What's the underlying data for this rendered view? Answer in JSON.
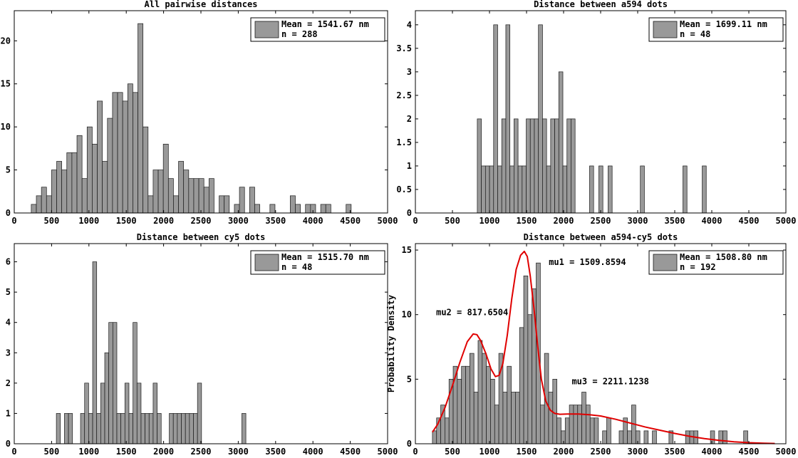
{
  "chart_data": [
    {
      "type": "bar",
      "title": "All pairwise distances",
      "xlim": [
        0,
        5000
      ],
      "ylim": [
        0,
        23.5
      ],
      "xticks": [
        0,
        500,
        1000,
        1500,
        2000,
        2500,
        3000,
        3500,
        4000,
        4500,
        5000
      ],
      "yticks": [
        0,
        5,
        10,
        15,
        20
      ],
      "bin_width": 68,
      "bar_color": "#999999",
      "x": [
        262,
        330,
        398,
        466,
        534,
        602,
        670,
        738,
        806,
        874,
        942,
        1010,
        1078,
        1146,
        1214,
        1282,
        1350,
        1418,
        1486,
        1554,
        1622,
        1690,
        1758,
        1826,
        1894,
        1962,
        2030,
        2098,
        2166,
        2234,
        2302,
        2370,
        2438,
        2506,
        2574,
        2642,
        2710,
        2778,
        2846,
        2914,
        2982,
        3050,
        3118,
        3186,
        3254,
        3322,
        3390,
        3458,
        3526,
        3594,
        3662,
        3730,
        3798,
        3866,
        3934,
        4002,
        4070,
        4138,
        4206,
        4274,
        4342,
        4410,
        4478
      ],
      "values": [
        1,
        2,
        3,
        2,
        5,
        6,
        5,
        7,
        7,
        9,
        4,
        10,
        8,
        13,
        6,
        11,
        14,
        14,
        13,
        15,
        14,
        22,
        10,
        2,
        5,
        5,
        8,
        4,
        2,
        6,
        5,
        4,
        4,
        4,
        3,
        4,
        0,
        2,
        2,
        0,
        1,
        3,
        0,
        3,
        1,
        0,
        0,
        1,
        0,
        0,
        0,
        2,
        1,
        0,
        1,
        1,
        0,
        1,
        1,
        0,
        0,
        0,
        1
      ],
      "legend": {
        "label": "Mean = 1541.67 nm",
        "n": "n = 288",
        "position": "top-right"
      }
    },
    {
      "type": "bar",
      "title": "Distance between a594 dots",
      "xlim": [
        0,
        5000
      ],
      "ylim": [
        0,
        4.3
      ],
      "xticks": [
        0,
        500,
        1000,
        1500,
        2000,
        2500,
        3000,
        3500,
        4000,
        4500,
        5000
      ],
      "yticks": [
        0,
        0.5,
        1,
        1.5,
        2,
        2.5,
        3,
        3.5,
        4
      ],
      "ytick_labels": [
        "0",
        "0.5",
        "1",
        "1.5",
        "2",
        "2.5",
        "3",
        "3.5",
        "4"
      ],
      "bin_width": 55,
      "bar_color": "#999999",
      "x": [
        863,
        918,
        973,
        1028,
        1083,
        1138,
        1193,
        1248,
        1303,
        1358,
        1413,
        1468,
        1523,
        1578,
        1633,
        1688,
        1743,
        1798,
        1853,
        1908,
        1963,
        2018,
        2073,
        2128,
        2378,
        2503,
        2628,
        3063,
        3638,
        3898
      ],
      "values": [
        2,
        1,
        1,
        1,
        4,
        1,
        2,
        4,
        1,
        2,
        1,
        1,
        2,
        2,
        2,
        4,
        2,
        1,
        2,
        2,
        3,
        1,
        2,
        2,
        1,
        1,
        1,
        1,
        1,
        1
      ],
      "legend": {
        "label": "Mean = 1699.11 nm",
        "n": "n = 48",
        "position": "top-right"
      }
    },
    {
      "type": "bar",
      "title": "Distance between cy5 dots",
      "xlim": [
        0,
        5000
      ],
      "ylim": [
        0,
        6.6
      ],
      "xticks": [
        0,
        500,
        1000,
        1500,
        2000,
        2500,
        3000,
        3500,
        4000,
        4500,
        5000
      ],
      "yticks": [
        0,
        1,
        2,
        3,
        4,
        5,
        6
      ],
      "bin_width": 54,
      "bar_color": "#999999",
      "x": [
        591,
        699,
        753,
        915,
        969,
        1023,
        1077,
        1131,
        1185,
        1239,
        1293,
        1347,
        1401,
        1455,
        1509,
        1563,
        1617,
        1671,
        1725,
        1779,
        1833,
        1887,
        1941,
        2103,
        2157,
        2211,
        2265,
        2319,
        2373,
        2427,
        2481,
        3075
      ],
      "values": [
        1,
        1,
        1,
        1,
        2,
        1,
        6,
        1,
        2,
        3,
        4,
        4,
        1,
        1,
        2,
        1,
        4,
        2,
        1,
        1,
        1,
        2,
        1,
        1,
        1,
        1,
        1,
        1,
        1,
        1,
        2,
        1
      ],
      "legend": {
        "label": "Mean = 1515.70 nm",
        "n": "n = 48",
        "position": "top-right"
      }
    },
    {
      "type": "bar",
      "title": "Distance between a594-cy5 dots",
      "ylabel": "Probability Density",
      "xlim": [
        0,
        5000
      ],
      "ylim": [
        0,
        15.5
      ],
      "xticks": [
        0,
        500,
        1000,
        1500,
        2000,
        2500,
        3000,
        3500,
        4000,
        4500,
        5000
      ],
      "yticks": [
        0,
        5,
        10,
        15
      ],
      "bin_width": 56,
      "bar_color": "#999999",
      "x": [
        258,
        314,
        370,
        426,
        482,
        538,
        594,
        650,
        706,
        762,
        818,
        874,
        930,
        986,
        1042,
        1098,
        1154,
        1210,
        1266,
        1322,
        1378,
        1434,
        1490,
        1546,
        1602,
        1658,
        1714,
        1770,
        1826,
        1882,
        1938,
        1994,
        2050,
        2106,
        2162,
        2218,
        2274,
        2330,
        2386,
        2442,
        2498,
        2554,
        2610,
        2666,
        2722,
        2778,
        2834,
        2890,
        2946,
        3002,
        3058,
        3114,
        3170,
        3226,
        3282,
        3338,
        3394,
        3450,
        3506,
        3562,
        3618,
        3674,
        3730,
        3786,
        3842,
        3898,
        3954,
        4010,
        4066,
        4122,
        4178,
        4234,
        4290,
        4346,
        4402,
        4458
      ],
      "values": [
        1,
        2,
        3,
        2,
        5,
        6,
        5,
        6,
        6,
        7,
        4,
        8,
        7,
        6,
        5,
        3,
        7,
        4,
        6,
        4,
        4,
        9,
        13,
        10,
        12,
        14,
        3,
        7,
        4,
        5,
        2,
        1,
        2,
        3,
        3,
        3,
        4,
        3,
        2,
        2,
        0,
        1,
        2,
        0,
        0,
        1,
        2,
        1,
        3,
        1,
        0,
        1,
        0,
        1,
        0,
        0,
        0,
        1,
        0,
        0,
        0,
        1,
        1,
        1,
        0,
        0,
        0,
        1,
        0,
        1,
        1,
        0,
        0,
        0,
        0,
        1
      ],
      "fit_curve": {
        "color": "#e00000",
        "x": [
          230,
          300,
          400,
          500,
          600,
          700,
          780,
          830,
          880,
          950,
          1020,
          1080,
          1130,
          1180,
          1240,
          1300,
          1360,
          1420,
          1470,
          1510,
          1550,
          1600,
          1650,
          1700,
          1760,
          1820,
          1880,
          1950,
          2050,
          2200,
          2350,
          2500,
          2700,
          2900,
          3100,
          3300,
          3500,
          3700,
          3900,
          4100,
          4300,
          4500,
          4700,
          4850
        ],
        "y": [
          0.9,
          1.5,
          2.8,
          4.5,
          6.3,
          7.9,
          8.5,
          8.45,
          8.0,
          7.0,
          5.8,
          5.2,
          5.3,
          6.2,
          8.4,
          11.2,
          13.5,
          14.6,
          14.9,
          14.5,
          13.0,
          10.5,
          7.6,
          5.0,
          3.3,
          2.6,
          2.35,
          2.28,
          2.3,
          2.3,
          2.25,
          2.15,
          1.9,
          1.6,
          1.3,
          1.05,
          0.8,
          0.58,
          0.4,
          0.26,
          0.15,
          0.08,
          0.04,
          0.02
        ]
      },
      "annotations": [
        {
          "text": "mu1 = 1509.8594",
          "x": 1800,
          "y": 13.85
        },
        {
          "text": "mu2 = 817.6504",
          "x": 280,
          "y": 9.95
        },
        {
          "text": "mu3 = 2211.1238",
          "x": 2110,
          "y": 4.6
        }
      ],
      "legend": {
        "label": "Mean = 1508.80 nm",
        "n": "n = 192",
        "position": "top-right"
      }
    }
  ]
}
